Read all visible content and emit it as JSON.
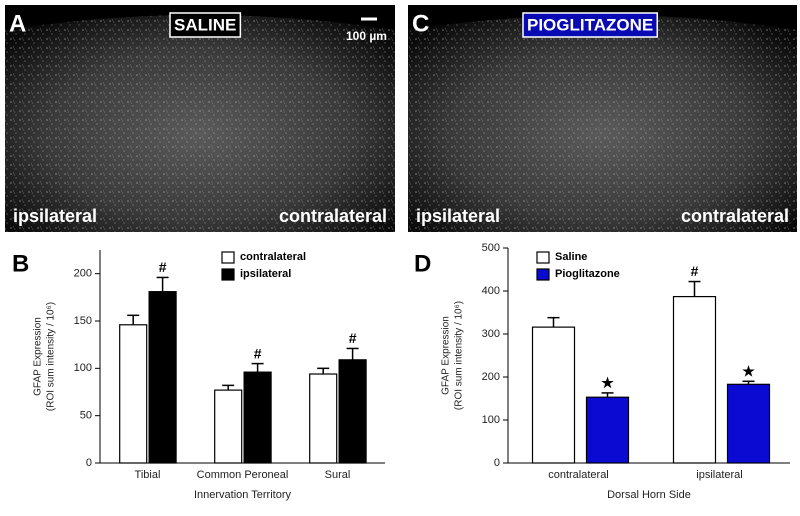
{
  "panels": [
    {
      "label": "A",
      "title": "SALINE",
      "title_color": "#000000",
      "scale_bar": "100 µm",
      "left": "ipsilateral",
      "right": "contralateral"
    },
    {
      "label": "C",
      "title": "PIOGLITAZONE",
      "title_color": "#0a0ab4",
      "left": "ipsilateral",
      "right": "contralateral"
    }
  ],
  "chart_data": [
    {
      "type": "bar",
      "label": "B",
      "xlabel": "Innervation Territory",
      "ylabel": [
        "GFAP Expression",
        "(ROI sum intensity / 10⁶)"
      ],
      "categories": [
        "Tibial",
        "Common Peroneal",
        "Sural"
      ],
      "series": [
        {
          "name": "contralateral",
          "color": "#ffffff",
          "values": [
            146,
            77,
            94
          ],
          "errors": [
            10,
            5,
            6
          ],
          "markers": [
            null,
            null,
            null
          ]
        },
        {
          "name": "ipsilateral",
          "color": "#000000",
          "values": [
            181,
            96,
            109
          ],
          "errors": [
            15,
            9,
            12
          ],
          "markers": [
            "#",
            "#",
            "#"
          ]
        }
      ],
      "ylim": [
        0,
        225
      ],
      "yticks": [
        0,
        50,
        100,
        150,
        200
      ]
    },
    {
      "type": "bar",
      "label": "D",
      "xlabel": "Dorsal Horn Side",
      "ylabel": [
        "GFAP Expression",
        "(ROI sum intensity / 10⁶)"
      ],
      "categories": [
        "contralateral",
        "ipsilateral"
      ],
      "series": [
        {
          "name": "Saline",
          "color": "#ffffff",
          "values": [
            316,
            387
          ],
          "errors": [
            22,
            35
          ],
          "markers": [
            null,
            "#"
          ]
        },
        {
          "name": "Pioglitazone",
          "color": "#0a0ad2",
          "values": [
            153,
            183
          ],
          "errors": [
            10,
            7
          ],
          "markers": [
            "★",
            "★"
          ]
        }
      ],
      "ylim": [
        0,
        500
      ],
      "yticks": [
        0,
        100,
        200,
        300,
        400,
        500
      ]
    }
  ]
}
